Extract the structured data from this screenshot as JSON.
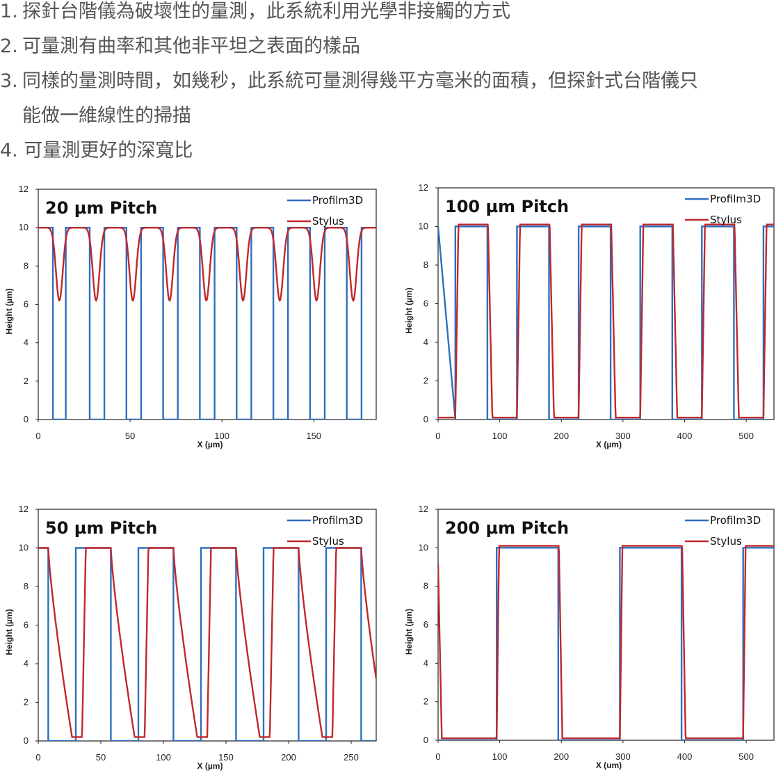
{
  "list": {
    "item1_num": "1.",
    "item1_text": "探針台階儀為破壞性的量測，此系統利用光學非接觸的方式",
    "item2_num": "2.",
    "item2_text": "可量測有曲率和其他非平坦之表面的樣品",
    "item3_num": "3.",
    "item3_text": "同樣的量測時間，如幾秒，此系統可量測得幾平方毫米的面積，但探針式台階儀只",
    "item3_cont": "能做一維線性的掃描",
    "item4_text": "4. 可量測更好的深寬比"
  },
  "colors": {
    "profilm": "#2e6fc0",
    "stylus": "#c0282b",
    "axis": "#222222"
  },
  "chart_data": [
    {
      "type": "line",
      "title": "20 µm Pitch",
      "xlabel": "X (µm)",
      "ylabel": "Height (µm)",
      "xlim": [
        0,
        184
      ],
      "ylim": [
        0,
        12
      ],
      "xticks": [
        0,
        50,
        100,
        150
      ],
      "yticks": [
        0,
        2,
        4,
        6,
        8,
        10,
        12
      ],
      "legend_position": "top-right",
      "pitch": 20,
      "first_edge": 8,
      "top_length": 12,
      "series": [
        {
          "name": "Profilm3D",
          "shape": "square wave",
          "high": 10,
          "low": 0
        },
        {
          "name": "Stylus",
          "shape": "partial dips",
          "high": 10,
          "min": 6.2
        }
      ]
    },
    {
      "type": "line",
      "title": "100 µm Pitch",
      "xlabel": "X (µm)",
      "ylabel": "Height (µm)",
      "xlim": [
        0,
        545
      ],
      "ylim": [
        0,
        12
      ],
      "xticks": [
        0,
        100,
        200,
        300,
        400,
        500
      ],
      "yticks": [
        0,
        2,
        4,
        6,
        8,
        10,
        12
      ],
      "legend_position": "top-right",
      "pitch": 100,
      "first_edge": 28,
      "top_length": 52,
      "series": [
        {
          "name": "Profilm3D",
          "shape": "square wave",
          "high": 10,
          "low": 0
        },
        {
          "name": "Stylus",
          "shape": "square wave, rounded edges",
          "high": 10.1,
          "low": 0.1
        }
      ]
    },
    {
      "type": "line",
      "title": "50 µm Pitch",
      "xlabel": "X (µm)",
      "ylabel": "Height (µm)",
      "xlim": [
        0,
        270
      ],
      "ylim": [
        0,
        12
      ],
      "xticks": [
        0,
        50,
        100,
        150,
        200,
        250
      ],
      "yticks": [
        0,
        2,
        4,
        6,
        8,
        10,
        12
      ],
      "legend_position": "top-right",
      "pitch": 50,
      "first_edge": 8,
      "top_length": 28,
      "series": [
        {
          "name": "Profilm3D",
          "shape": "square wave",
          "high": 10,
          "low": 0
        },
        {
          "name": "Stylus",
          "shape": "sloped walls",
          "high": 10,
          "low": 0.2
        }
      ]
    },
    {
      "type": "line",
      "title": "200 µm Pitch",
      "xlabel": "X (um)",
      "ylabel": "Height (µm)",
      "xlim": [
        0,
        545
      ],
      "ylim": [
        0,
        12
      ],
      "xticks": [
        0,
        100,
        200,
        300,
        400,
        500
      ],
      "yticks": [
        0,
        2,
        4,
        6,
        8,
        10,
        12
      ],
      "legend_position": "top-right",
      "pitch": 200,
      "first_edge": 0,
      "top_length": 100,
      "series": [
        {
          "name": "Profilm3D",
          "shape": "square wave",
          "high": 10,
          "low": 0
        },
        {
          "name": "Stylus",
          "shape": "square wave, rounded edges",
          "high": 10.1,
          "low": 0.1
        }
      ]
    }
  ]
}
